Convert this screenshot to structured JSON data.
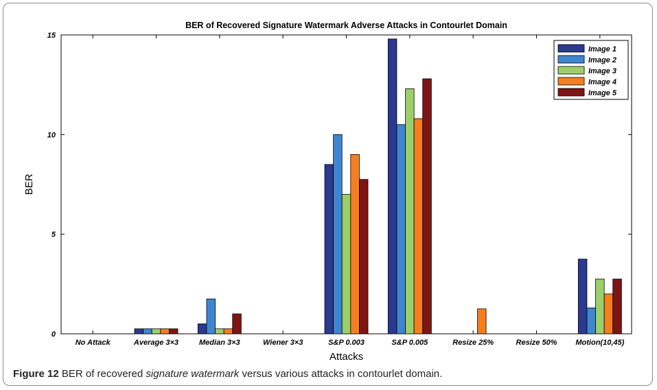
{
  "caption": {
    "label": "Figure 12",
    "text_before": " BER of recovered ",
    "emphasis": "signature watermark",
    "text_after": " versus various attacks in contourlet domain."
  },
  "chart_data": {
    "type": "bar",
    "title": "BER of Recovered Signature Watermark Adverse Attacks in Contourlet Domain",
    "xlabel": "Attacks",
    "ylabel": "BER",
    "ylim": [
      0,
      15
    ],
    "yticks": [
      0,
      5,
      10,
      15
    ],
    "grid": false,
    "legend": "top-right",
    "categories": [
      "No Attack",
      "Average 3×3",
      "Median 3×3",
      "Wiener 3×3",
      "S&P 0.003",
      "S&P 0.005",
      "Resize 25%",
      "Resize 50%",
      "Motion(10,45)"
    ],
    "series": [
      {
        "name": "Image 1",
        "color": "#2b3990",
        "values": [
          0,
          0.25,
          0.5,
          0,
          8.5,
          14.8,
          0,
          0,
          3.75
        ]
      },
      {
        "name": "Image 2",
        "color": "#3f86d0",
        "values": [
          0,
          0.25,
          1.75,
          0,
          10.0,
          10.5,
          0,
          0,
          1.3
        ]
      },
      {
        "name": "Image 3",
        "color": "#9ccf6a",
        "values": [
          0,
          0.25,
          0.25,
          0,
          7.0,
          12.3,
          0,
          0,
          2.75
        ]
      },
      {
        "name": "Image 4",
        "color": "#f57f20",
        "values": [
          0,
          0.25,
          0.25,
          0,
          9.0,
          10.8,
          1.25,
          0,
          2.0
        ]
      },
      {
        "name": "Image 5",
        "color": "#7f1414",
        "values": [
          0,
          0.25,
          1.0,
          0,
          7.75,
          12.8,
          0,
          0,
          2.75
        ]
      }
    ]
  }
}
